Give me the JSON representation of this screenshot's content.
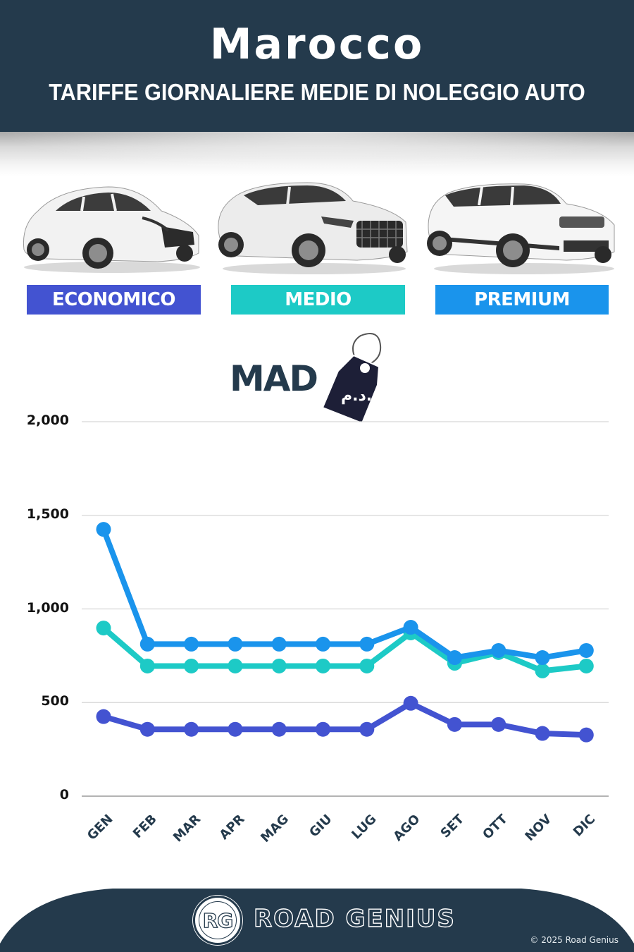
{
  "header": {
    "country": "Marocco",
    "subtitle": "TARIFFE GIORNALIERE MEDIE DI NOLEGGIO AUTO"
  },
  "categories": [
    {
      "label": "ECONOMICO",
      "color": "#4353d1",
      "car": "hatchback-car-image"
    },
    {
      "label": "MEDIO",
      "color": "#1dcac6",
      "car": "suv-car-image"
    },
    {
      "label": "PREMIUM",
      "color": "#1a94ec",
      "car": "luxury-suv-car-image"
    }
  ],
  "currency": {
    "code": "MAD",
    "tag_symbol": "د.م.",
    "tag_icon": "price-tag-icon"
  },
  "chart_data": {
    "type": "line",
    "title": "Marocco — Tariffe giornaliere medie di noleggio auto",
    "xlabel": "",
    "ylabel": "MAD",
    "categories": [
      "GEN",
      "FEB",
      "MAR",
      "APR",
      "MAG",
      "GIU",
      "LUG",
      "AGO",
      "SET",
      "OTT",
      "NOV",
      "DIC"
    ],
    "yticks": [
      "0",
      "500",
      "1,000",
      "1,500",
      "2,000"
    ],
    "ylim": [
      0,
      2000
    ],
    "grid": true,
    "legend_position": "top (category badges)",
    "series": [
      {
        "name": "ECONOMICO",
        "color": "#4353d1",
        "values": [
          425,
          357,
          357,
          357,
          357,
          357,
          357,
          496,
          383,
          383,
          335,
          327
        ]
      },
      {
        "name": "MEDIO",
        "color": "#1dcac6",
        "values": [
          898,
          695,
          695,
          695,
          695,
          695,
          695,
          872,
          710,
          767,
          669,
          695
        ]
      },
      {
        "name": "PREMIUM",
        "color": "#1a94ec",
        "values": [
          1425,
          812,
          812,
          812,
          812,
          812,
          812,
          902,
          740,
          778,
          740,
          778
        ]
      }
    ]
  },
  "footer": {
    "logo_text": "RG",
    "brand": "ROAD GENIUS",
    "copyright": "© 2025 Road Genius"
  }
}
